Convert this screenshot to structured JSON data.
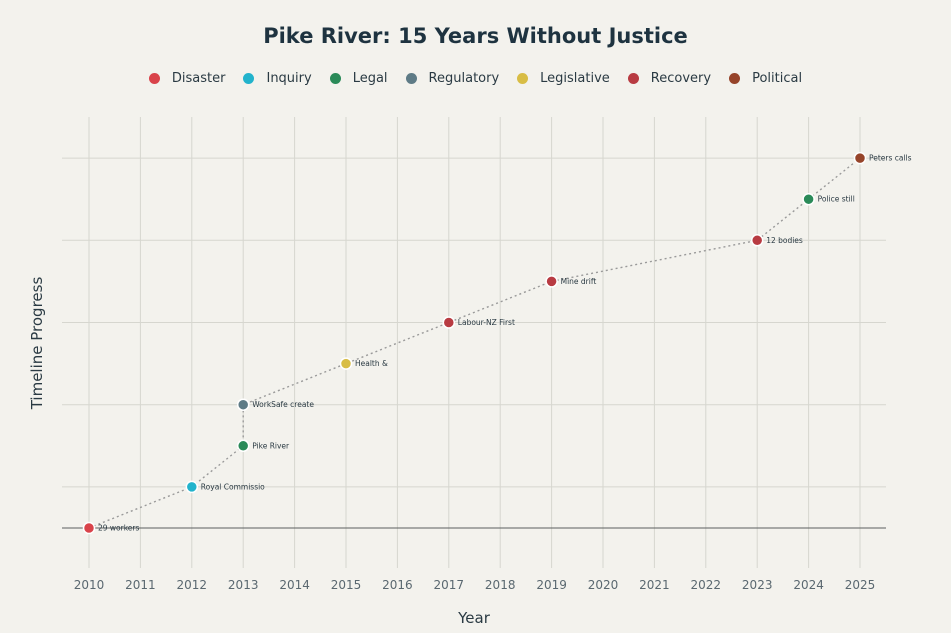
{
  "chart_data": {
    "type": "scatter",
    "title": "Pike River: 15 Years Without Justice",
    "xlabel": "Year",
    "ylabel": "Timeline Progress",
    "xlim": [
      2009.5,
      2025.5
    ],
    "ylim": [
      -1,
      10
    ],
    "x_ticks": [
      "2010",
      "2011",
      "2012",
      "2013",
      "2014",
      "2015",
      "2016",
      "2017",
      "2018",
      "2019",
      "2020",
      "2021",
      "2022",
      "2023",
      "2024",
      "2025"
    ],
    "grid": true,
    "legend_position": "top",
    "categories": [
      {
        "name": "Disaster",
        "color": "#d9434a"
      },
      {
        "name": "Inquiry",
        "color": "#22b3cc"
      },
      {
        "name": "Legal",
        "color": "#2a8a58"
      },
      {
        "name": "Regulatory",
        "color": "#5e7b86"
      },
      {
        "name": "Legislative",
        "color": "#d8bd45"
      },
      {
        "name": "Recovery",
        "color": "#b83b42"
      },
      {
        "name": "Political",
        "color": "#96442a"
      }
    ],
    "points": [
      {
        "x": 2010,
        "y": 0,
        "category": "Disaster",
        "label": "29 workers"
      },
      {
        "x": 2012,
        "y": 1,
        "category": "Inquiry",
        "label": "Royal Commissio"
      },
      {
        "x": 2013,
        "y": 2,
        "category": "Legal",
        "label": "Pike River"
      },
      {
        "x": 2013,
        "y": 3,
        "category": "Regulatory",
        "label": "WorkSafe create"
      },
      {
        "x": 2015,
        "y": 4,
        "category": "Legislative",
        "label": "Health &"
      },
      {
        "x": 2017,
        "y": 5,
        "category": "Recovery",
        "label": "Labour-NZ First"
      },
      {
        "x": 2019,
        "y": 6,
        "category": "Recovery",
        "label": "Mine drift"
      },
      {
        "x": 2023,
        "y": 7,
        "category": "Recovery",
        "label": "12 bodies"
      },
      {
        "x": 2024,
        "y": 8,
        "category": "Legal",
        "label": "Police still"
      },
      {
        "x": 2025,
        "y": 9,
        "category": "Political",
        "label": "Peters calls"
      }
    ]
  }
}
